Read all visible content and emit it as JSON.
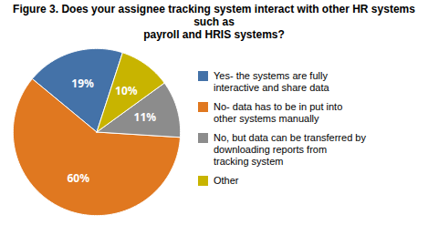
{
  "chart_data": {
    "type": "pie",
    "title": "Figure 3. Does your assignee tracking system interact with other HR systems such as\npayroll and HRIS systems?",
    "categories": [
      "Yes- the systems are fully\ninteractive and share data",
      "No- data has to be in put into\nother systems manually",
      "No, but data can be transferred by\ndownloading reports from\ntracking system",
      "Other"
    ],
    "values": [
      19,
      60,
      11,
      10
    ],
    "value_labels": [
      "19%",
      "60%",
      "11%",
      "10%"
    ],
    "colors": [
      "#4472a8",
      "#e07820",
      "#8c8c8c",
      "#c8b400"
    ],
    "data_labels": true,
    "legend": "right"
  }
}
